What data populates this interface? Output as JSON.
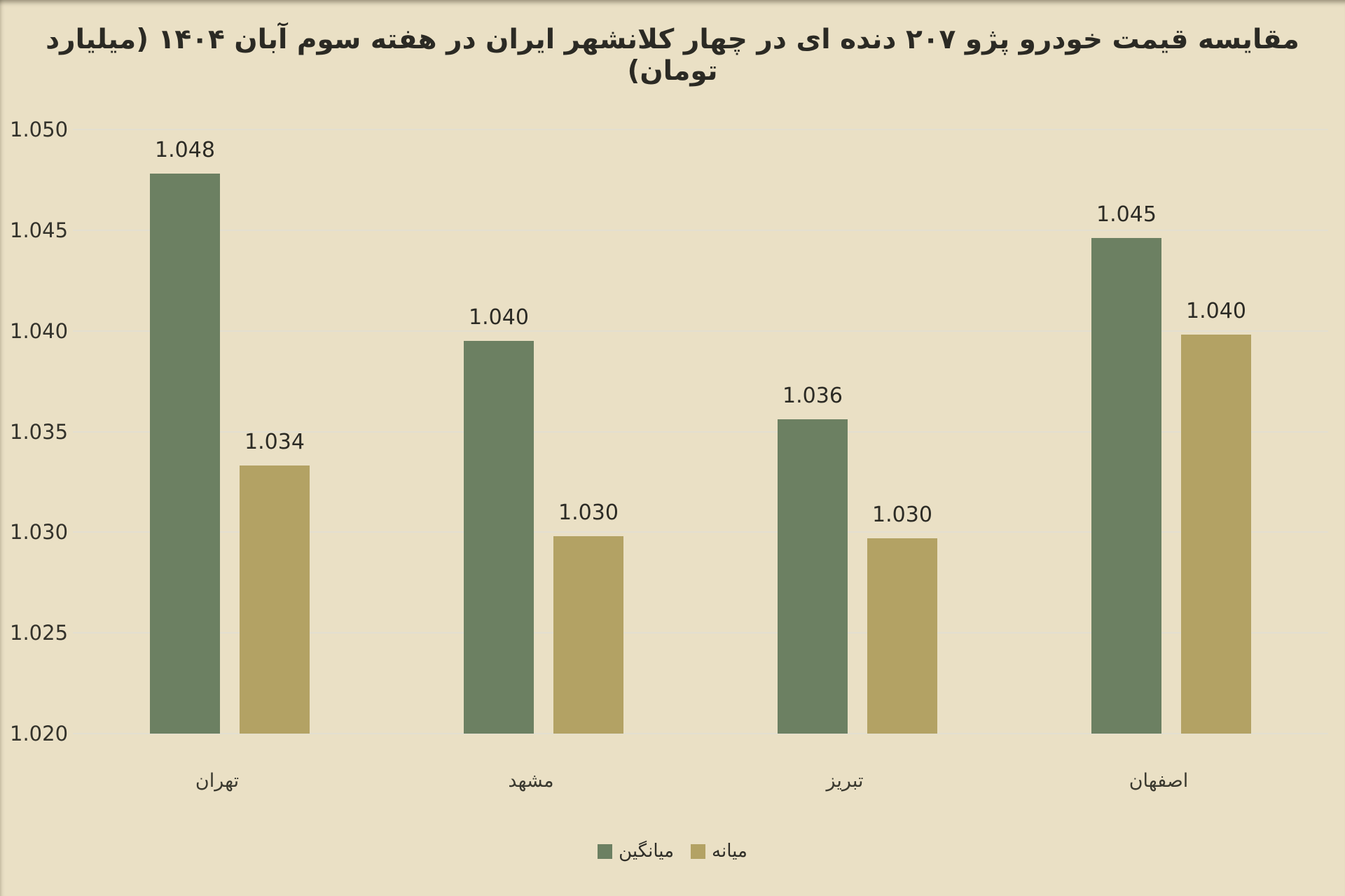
{
  "chart_data": {
    "type": "bar",
    "title": "مقایسه قیمت خودرو پژو ۲۰۷ دنده ای در چهار کلانشهر ایران در هفته سوم آبان ۱۴۰۴ (میلیارد تومان)",
    "categories": [
      "تهران",
      "مشهد",
      "تبریز",
      "اصفهان"
    ],
    "series": [
      {
        "name": "میانگین",
        "color": "#6C8062",
        "values": [
          1.048,
          1.04,
          1.036,
          1.045
        ],
        "labels": [
          "1.048",
          "1.040",
          "1.036",
          "1.045"
        ],
        "values_precise": [
          1.0478,
          1.0395,
          1.0356,
          1.0446
        ]
      },
      {
        "name": "میانه",
        "color": "#B3A264",
        "values": [
          1.034,
          1.03,
          1.03,
          1.04
        ],
        "labels": [
          "1.034",
          "1.030",
          "1.030",
          "1.040"
        ],
        "values_precise": [
          1.0333,
          1.0298,
          1.0297,
          1.0398
        ]
      }
    ],
    "y_axis": {
      "min": 1.02,
      "max": 1.05,
      "step": 0.005,
      "ticks": [
        "1.050",
        "1.045",
        "1.040",
        "1.035",
        "1.030",
        "1.025",
        "1.020"
      ]
    },
    "grid": "horizontal",
    "legend_position": "bottom-center",
    "background_color": "#EAE0C5",
    "gridline_color": "#E3DFD0",
    "text_color": "#2C2B25"
  }
}
